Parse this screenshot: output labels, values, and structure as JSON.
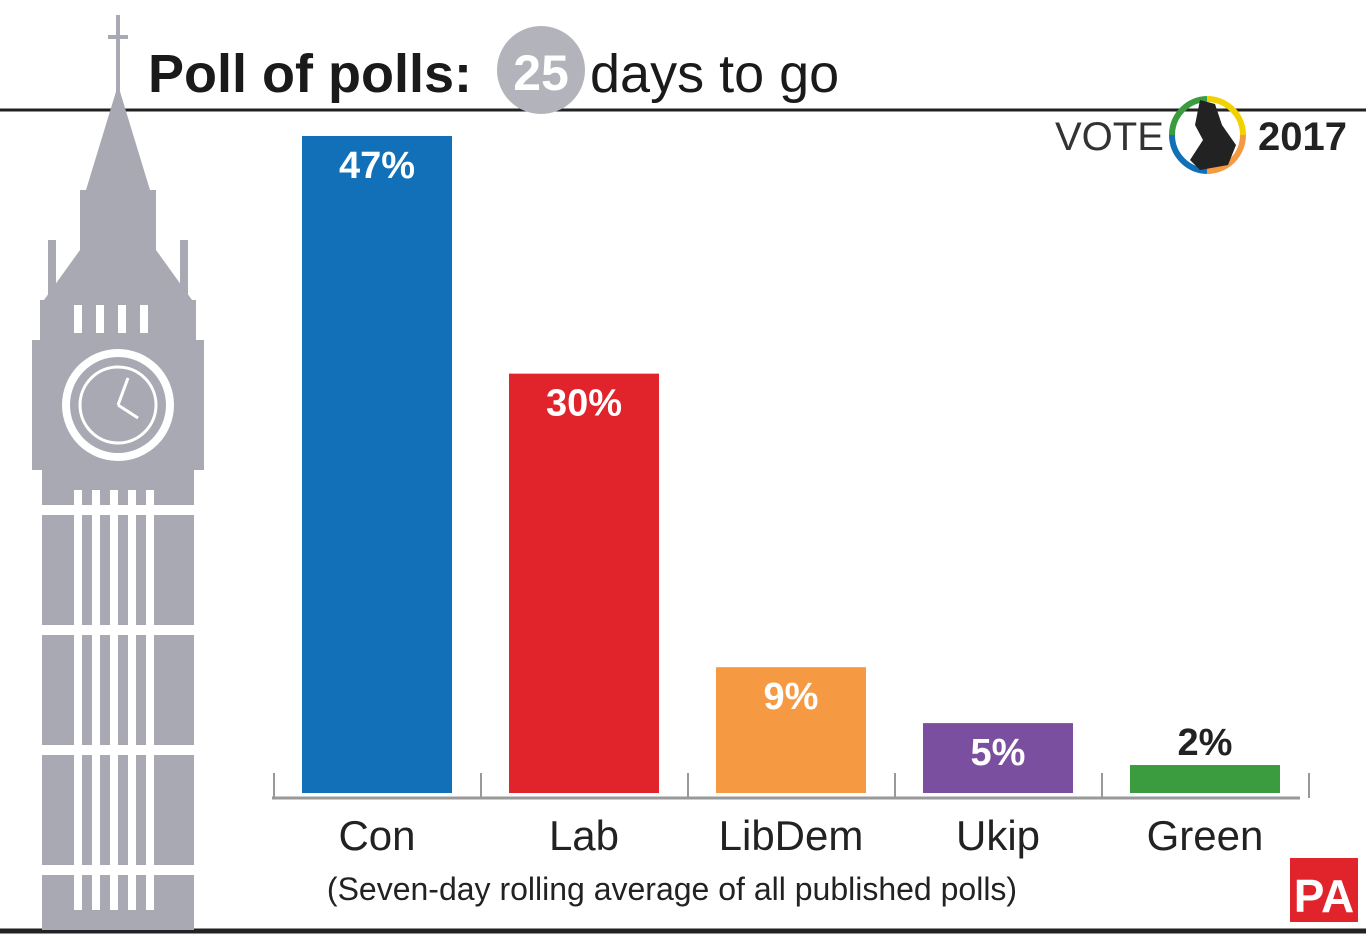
{
  "chart_data": {
    "type": "bar",
    "title": "Poll of polls:",
    "countdown": "25",
    "countdown_label": "days to go",
    "logo_text": "VOTE",
    "logo_year": "2017",
    "source": "PA",
    "subtitle": "(Seven-day rolling average of all published polls)",
    "categories": [
      "Con",
      "Lab",
      "LibDem",
      "Ukip",
      "Green"
    ],
    "values": [
      47,
      30,
      9,
      5,
      2
    ],
    "value_labels": [
      "47%",
      "30%",
      "9%",
      "5%",
      "2%"
    ],
    "colors": [
      "#1270b8",
      "#e1242b",
      "#f59a42",
      "#7b4fa0",
      "#3a9b3f"
    ]
  }
}
